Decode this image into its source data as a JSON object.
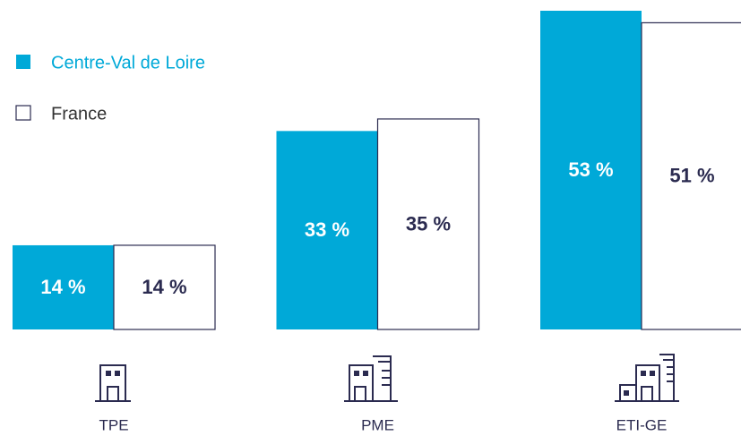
{
  "chart_data": {
    "type": "bar",
    "categories": [
      "TPE",
      "PME",
      "ETI-GE"
    ],
    "series": [
      {
        "name": "Centre-Val de Loire",
        "color": "#00a9d8",
        "values": [
          14,
          33,
          53
        ],
        "value_labels": [
          "14 %",
          "33 %",
          "53 %"
        ]
      },
      {
        "name": "France",
        "color": "#ffffff",
        "values": [
          14,
          35,
          51
        ],
        "value_labels": [
          "14 %",
          "35 %",
          "51 %"
        ]
      }
    ],
    "outline": "#2b2b50"
  }
}
